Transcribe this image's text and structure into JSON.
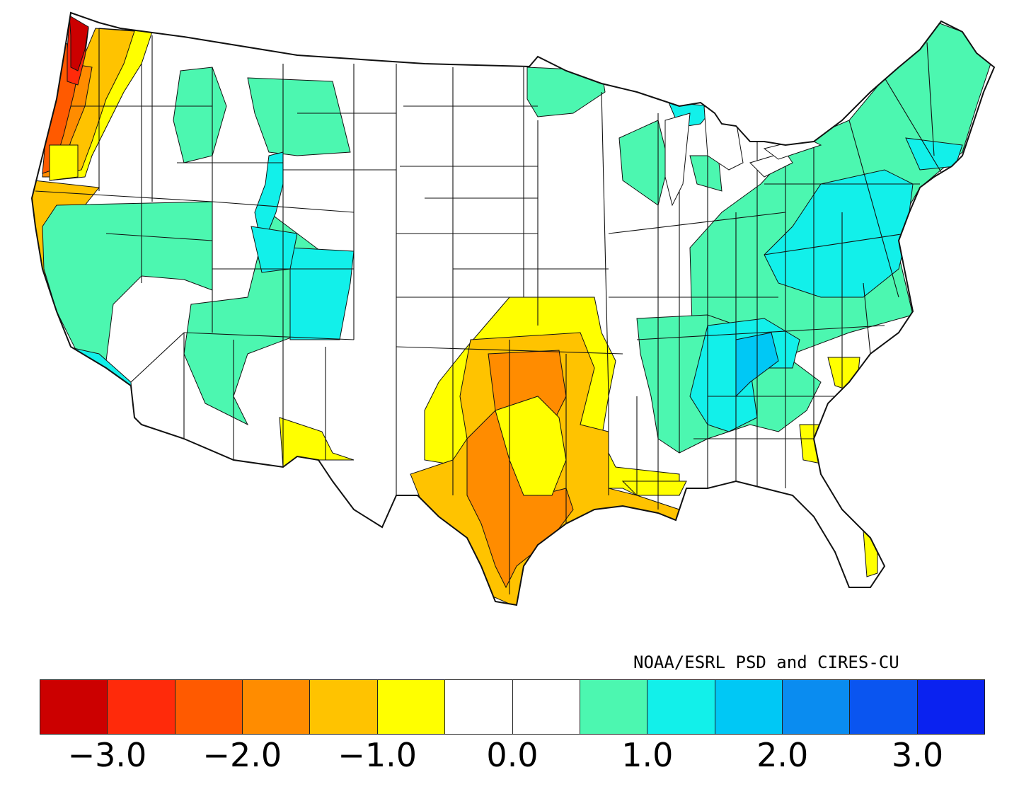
{
  "map": {
    "region": "contiguous United States climate divisions",
    "legend_levels": [
      {
        "color": "#cc0000",
        "range": "< -3.5"
      },
      {
        "color": "#ff2a0a",
        "range": "-3.5 to -3.0"
      },
      {
        "color": "#ff5a00",
        "range": "-3.0 to -2.5"
      },
      {
        "color": "#ff8c00",
        "range": "-2.5 to -2.0"
      },
      {
        "color": "#ffc300",
        "range": "-2.0 to -1.5"
      },
      {
        "color": "#ffff00",
        "range": "-1.5 to -1.0"
      },
      {
        "color": "#ffffff",
        "range": "-1.0 to -0.5"
      },
      {
        "color": "#ffffff",
        "range": "-0.5 to 0.5"
      },
      {
        "color": "#4cf7b0",
        "range": "0.5 to 1.0"
      },
      {
        "color": "#12f0ea",
        "range": "1.0 to 1.5"
      },
      {
        "color": "#00c8f5",
        "range": "1.5 to 2.0"
      },
      {
        "color": "#0a8cf0",
        "range": "2.0 to 2.5"
      },
      {
        "color": "#0a55f0",
        "range": "2.5 to 3.0"
      },
      {
        "color": "#0a22f0",
        "range": "> 3.0"
      }
    ],
    "regions": [
      {
        "name": "Washington coast",
        "color": "#cc0000"
      },
      {
        "name": "Western Oregon",
        "color": "#ff8c00"
      },
      {
        "name": "Northern California coast",
        "color": "#ffc300"
      },
      {
        "name": "Southeast Texas",
        "color": "#ff8c00"
      },
      {
        "name": "Central Texas",
        "color": "#ffc300"
      },
      {
        "name": "Oklahoma / Kansas",
        "color": "#ffff00"
      },
      {
        "name": "Tennessee Valley",
        "color": "#12f0ea"
      },
      {
        "name": "Appalachians",
        "color": "#12f0ea"
      },
      {
        "name": "Northeast",
        "color": "#4cf7b0"
      },
      {
        "name": "Great Basin",
        "color": "#4cf7b0"
      },
      {
        "name": "Colorado",
        "color": "#12f0ea"
      }
    ]
  },
  "credit": "NOAA/ESRL PSD and CIRES-CU",
  "colorbar": {
    "colors": [
      "#cc0000",
      "#ff2a0a",
      "#ff5a00",
      "#ff8c00",
      "#ffc300",
      "#ffff00",
      "#ffffff",
      "#ffffff",
      "#4cf7b0",
      "#12f0ea",
      "#00c8f5",
      "#0a8cf0",
      "#0a55f0",
      "#0a22f0"
    ],
    "labels": [
      "−3.0",
      "−2.0",
      "−1.0",
      "0.0",
      "1.0",
      "2.0",
      "3.0"
    ],
    "label_values": [
      -3.0,
      -2.0,
      -1.0,
      0.0,
      1.0,
      2.0,
      3.0
    ],
    "min": -3.5,
    "max": 3.5
  }
}
